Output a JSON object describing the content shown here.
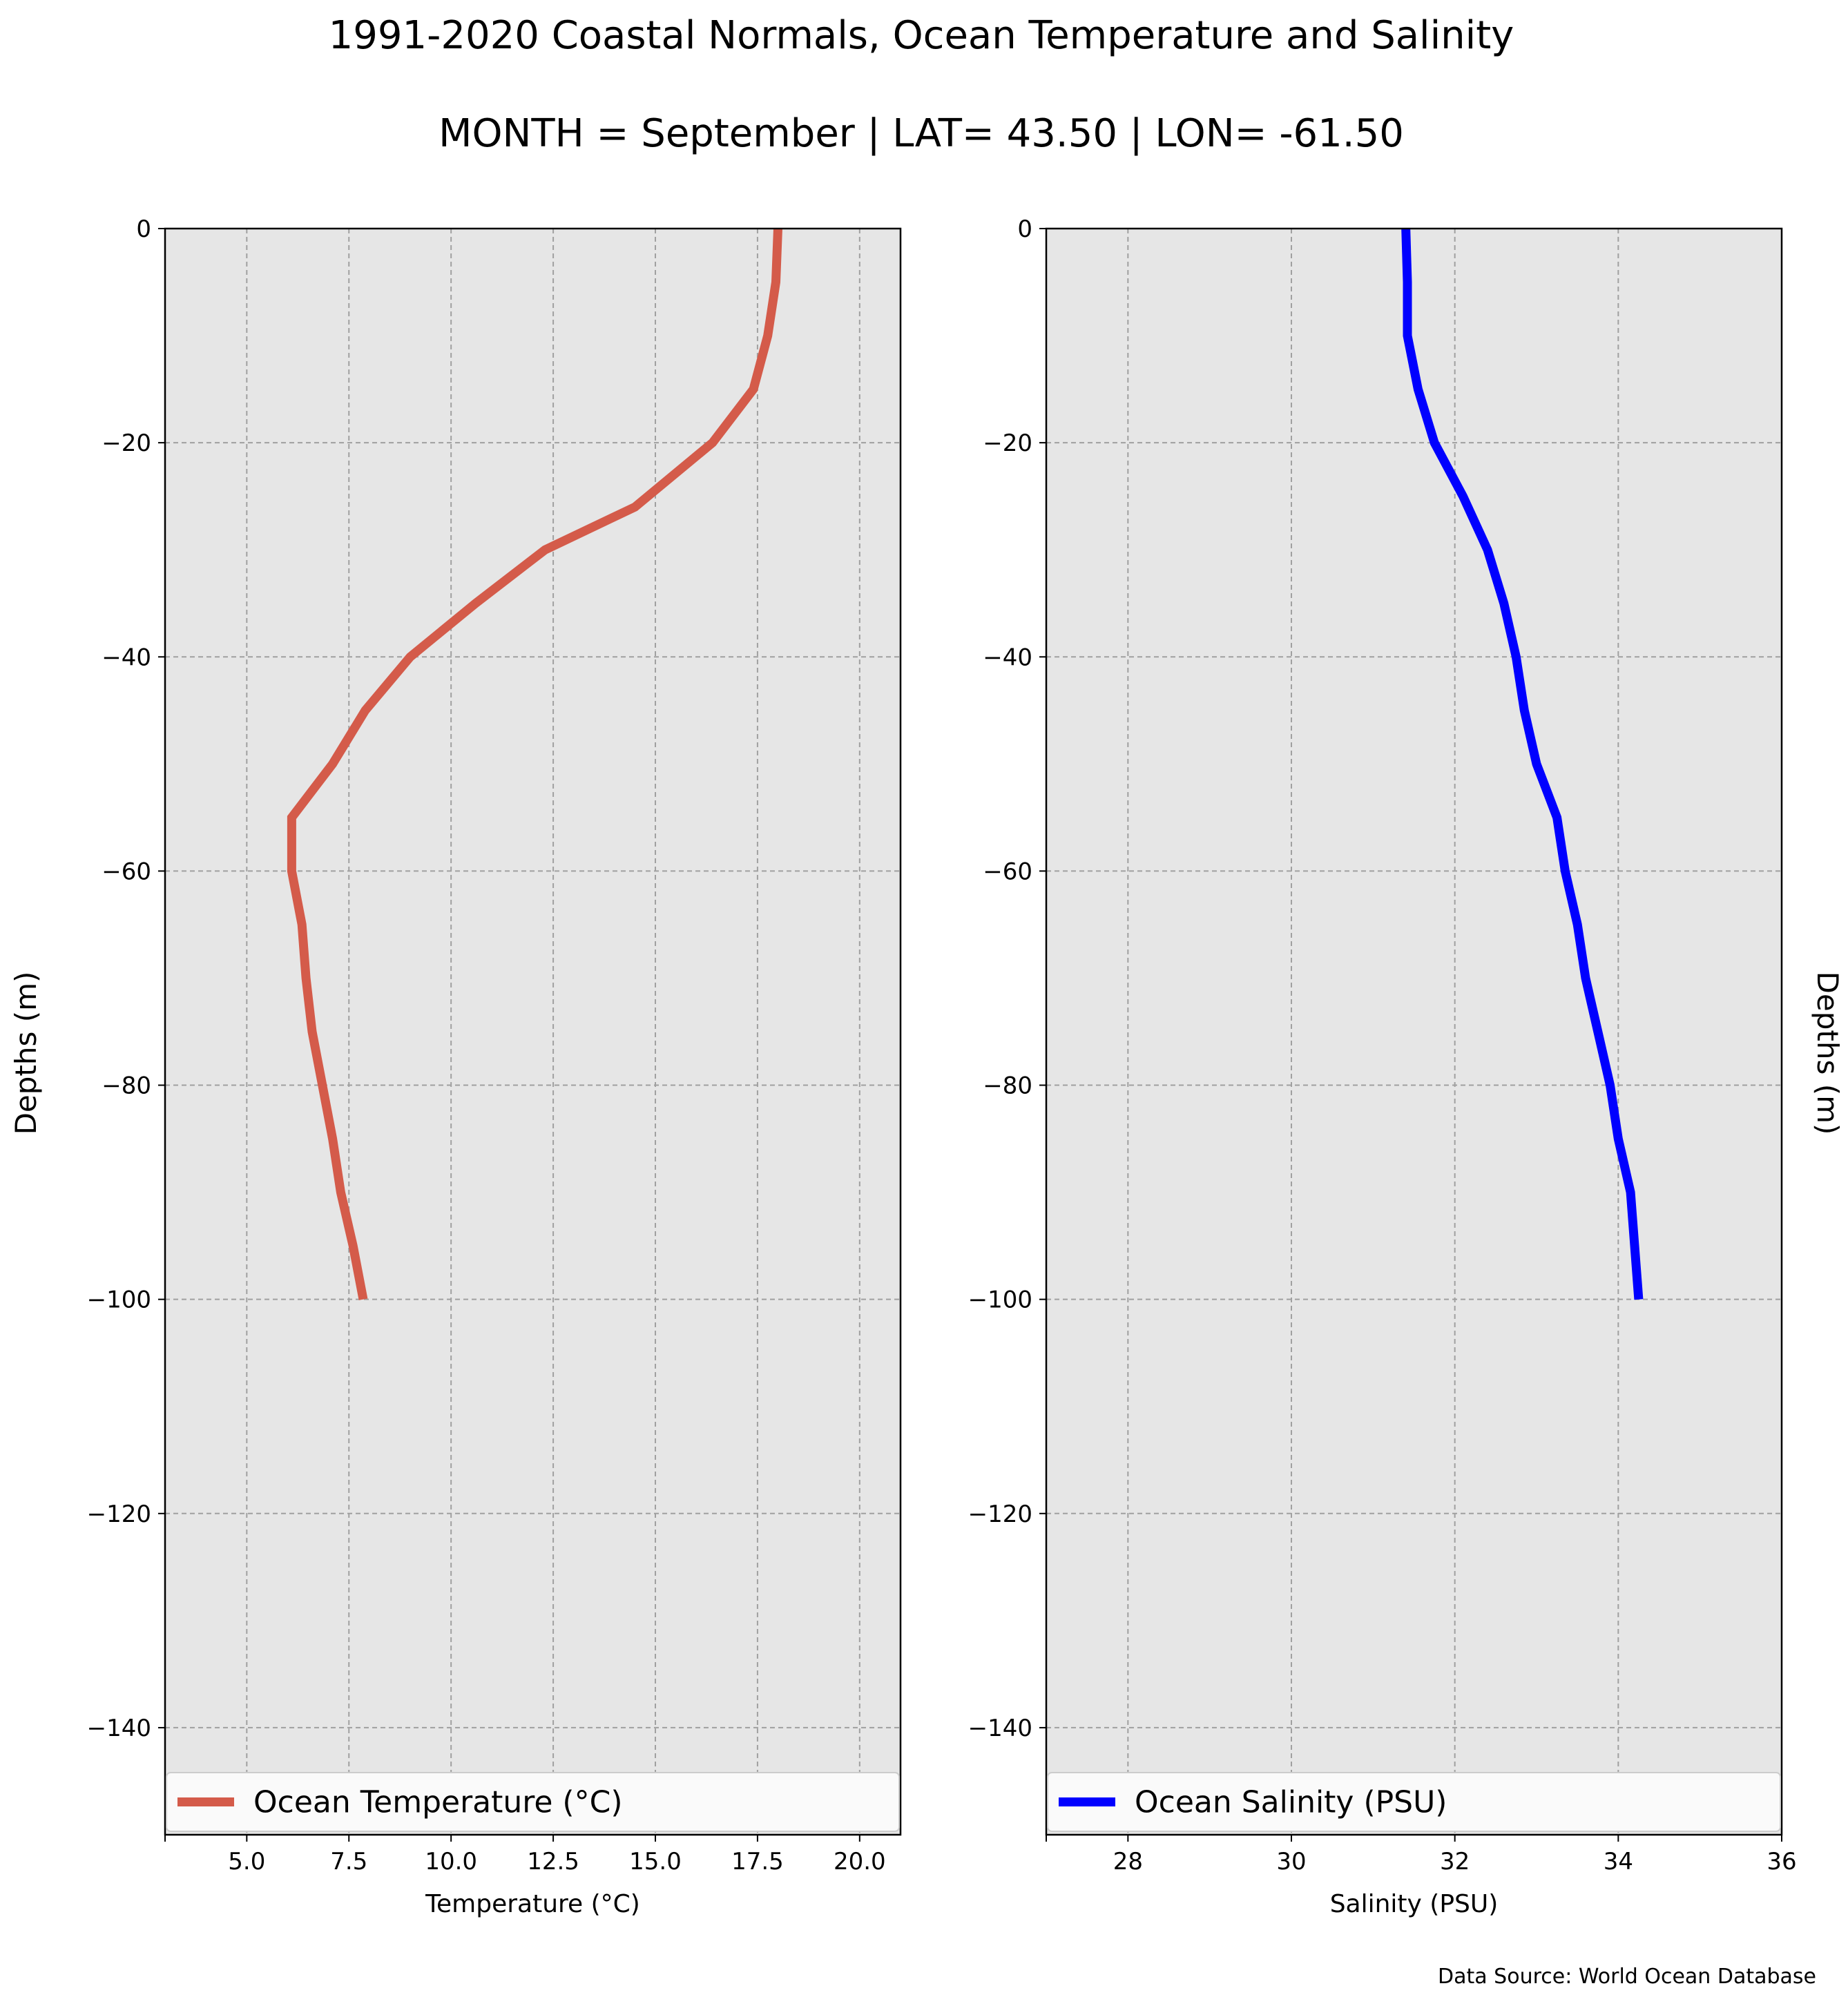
{
  "figure": {
    "title_line1": "1991-2020 Coastal Normals, Ocean Temperature and Salinity",
    "title_line2": "MONTH = September | LAT= 43.50 | LON= -61.50",
    "source": "Data Source: World Ocean Database",
    "background": "#e6e6e6",
    "grid_color": "#a0a0a0"
  },
  "chart_data": [
    {
      "type": "line",
      "xlabel": "Temperature ($^\\circ$C)",
      "xlabel_display": "Temperature (°C)",
      "ylabel": "Depths (m)",
      "xlim": [
        3.0,
        21.0
      ],
      "ylim": [
        -150,
        0
      ],
      "xticks": [
        5.0,
        7.5,
        10.0,
        12.5,
        15.0,
        17.5,
        20.0
      ],
      "xtick_labels": [
        "5.0",
        "7.5",
        "10.0",
        "12.5",
        "15.0",
        "17.5",
        "20.0"
      ],
      "yticks": [
        0,
        -20,
        -40,
        -60,
        -80,
        -100,
        -120,
        -140
      ],
      "ytick_labels": [
        "0",
        "−20",
        "−40",
        "−60",
        "−80",
        "−100",
        "−120",
        "−140"
      ],
      "grid": true,
      "legend": "bottom",
      "series": [
        {
          "name": "Ocean Temperature (°C)",
          "color": "#d45b4a",
          "x": [
            18.0,
            17.95,
            17.75,
            17.4,
            16.4,
            14.5,
            12.3,
            10.6,
            9.0,
            7.9,
            7.1,
            6.1,
            6.1,
            6.35,
            6.45,
            6.6,
            6.85,
            7.1,
            7.3,
            7.6,
            7.85
          ],
          "y": [
            0,
            -5,
            -10,
            -15,
            -20,
            -26,
            -30,
            -35,
            -40,
            -45,
            -50,
            -55,
            -60,
            -65,
            -70,
            -75,
            -80,
            -85,
            -90,
            -95,
            -100
          ]
        }
      ]
    },
    {
      "type": "line",
      "xlabel": "Salinity (PSU)",
      "ylabel": "Depths (m)",
      "xlim": [
        27.0,
        36.0
      ],
      "ylim": [
        -150,
        0
      ],
      "xticks": [
        28,
        30,
        32,
        34,
        36
      ],
      "xtick_labels": [
        "28",
        "30",
        "32",
        "34",
        "36"
      ],
      "yticks": [
        0,
        -20,
        -40,
        -60,
        -80,
        -100,
        -120,
        -140
      ],
      "ytick_labels": [
        "0",
        "−20",
        "−40",
        "−60",
        "−80",
        "−100",
        "−120",
        "−140"
      ],
      "grid": true,
      "legend": "bottom",
      "series": [
        {
          "name": "Ocean Salinity (PSU)",
          "color": "#0000ff",
          "x": [
            31.4,
            31.42,
            31.42,
            31.55,
            31.75,
            32.1,
            32.4,
            32.6,
            32.75,
            32.85,
            33.0,
            33.25,
            33.35,
            33.5,
            33.6,
            33.75,
            33.9,
            34.0,
            34.15,
            34.2,
            34.25
          ],
          "y": [
            0,
            -5,
            -10,
            -15,
            -20,
            -25,
            -30,
            -35,
            -40,
            -45,
            -50,
            -55,
            -60,
            -65,
            -70,
            -75,
            -80,
            -85,
            -90,
            -95,
            -100
          ]
        }
      ]
    }
  ]
}
